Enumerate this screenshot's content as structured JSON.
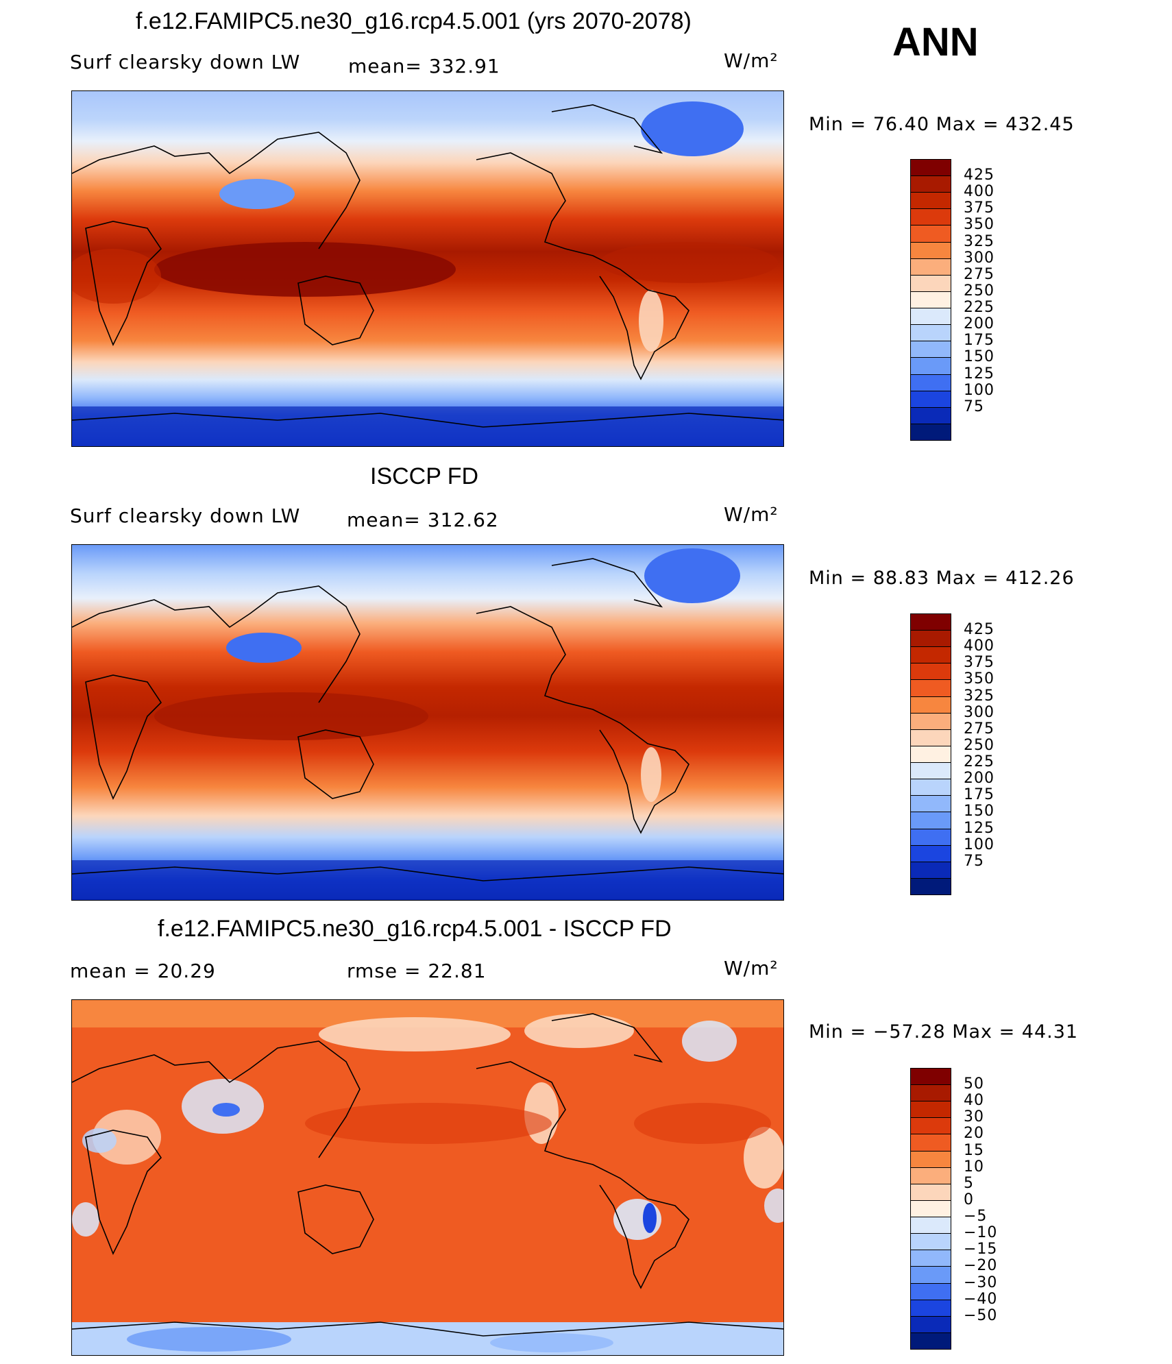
{
  "header": {
    "ann_label": "ANN"
  },
  "panels": [
    {
      "id": "model",
      "title": "f.e12.FAMIPC5.ne30_g16.rcp4.5.001 (yrs 2070-2078)",
      "left_label": "Surf clearsky down LW",
      "mean_text": "mean= 332.91",
      "units": "W/m²",
      "minmax": "Min =   76.40  Max  =  432.45",
      "colorbar": {
        "labels": [
          "425",
          "400",
          "375",
          "350",
          "325",
          "300",
          "275",
          "250",
          "225",
          "200",
          "175",
          "150",
          "125",
          "100",
          "75"
        ],
        "colors": [
          "#7f0000",
          "#a81a00",
          "#c42800",
          "#dc3a0c",
          "#ef5b22",
          "#f7863f",
          "#fbae7c",
          "#fcd6bb",
          "#fff1e2",
          "#dbe9fb",
          "#b9d4fc",
          "#91b8fb",
          "#6a9af8",
          "#3f6ff2",
          "#1b45e0",
          "#0a2ab8",
          "#001a7a"
        ]
      }
    },
    {
      "id": "obs",
      "title": "ISCCP FD",
      "left_label": "Surf clearsky down LW",
      "mean_text": "mean= 312.62",
      "units": "W/m²",
      "minmax": "Min =   88.83  Max  =  412.26",
      "colorbar": {
        "labels": [
          "425",
          "400",
          "375",
          "350",
          "325",
          "300",
          "275",
          "250",
          "225",
          "200",
          "175",
          "150",
          "125",
          "100",
          "75"
        ],
        "colors": [
          "#7f0000",
          "#a81a00",
          "#c42800",
          "#dc3a0c",
          "#ef5b22",
          "#f7863f",
          "#fbae7c",
          "#fcd6bb",
          "#fff1e2",
          "#dbe9fb",
          "#b9d4fc",
          "#91b8fb",
          "#6a9af8",
          "#3f6ff2",
          "#1b45e0",
          "#0a2ab8",
          "#001a7a"
        ]
      }
    },
    {
      "id": "diff",
      "title": "f.e12.FAMIPC5.ne30_g16.rcp4.5.001 - ISCCP FD",
      "left_label": "mean =   20.29",
      "mean_text": "rmse =   22.81",
      "units": "W/m²",
      "minmax": "Min = −57.28  Max =   44.31",
      "colorbar": {
        "labels": [
          "50",
          "40",
          "30",
          "20",
          "15",
          "10",
          "5",
          "0",
          "−5",
          "−10",
          "−15",
          "−20",
          "−30",
          "−40",
          "−50"
        ],
        "colors": [
          "#7f0000",
          "#a81a00",
          "#c42800",
          "#dc3a0c",
          "#ef5b22",
          "#f7863f",
          "#fbae7c",
          "#fcd6bb",
          "#fff1e2",
          "#dbe9fb",
          "#b9d4fc",
          "#91b8fb",
          "#6a9af8",
          "#3f6ff2",
          "#1b45e0",
          "#0a2ab8",
          "#001a7a"
        ]
      }
    }
  ]
}
